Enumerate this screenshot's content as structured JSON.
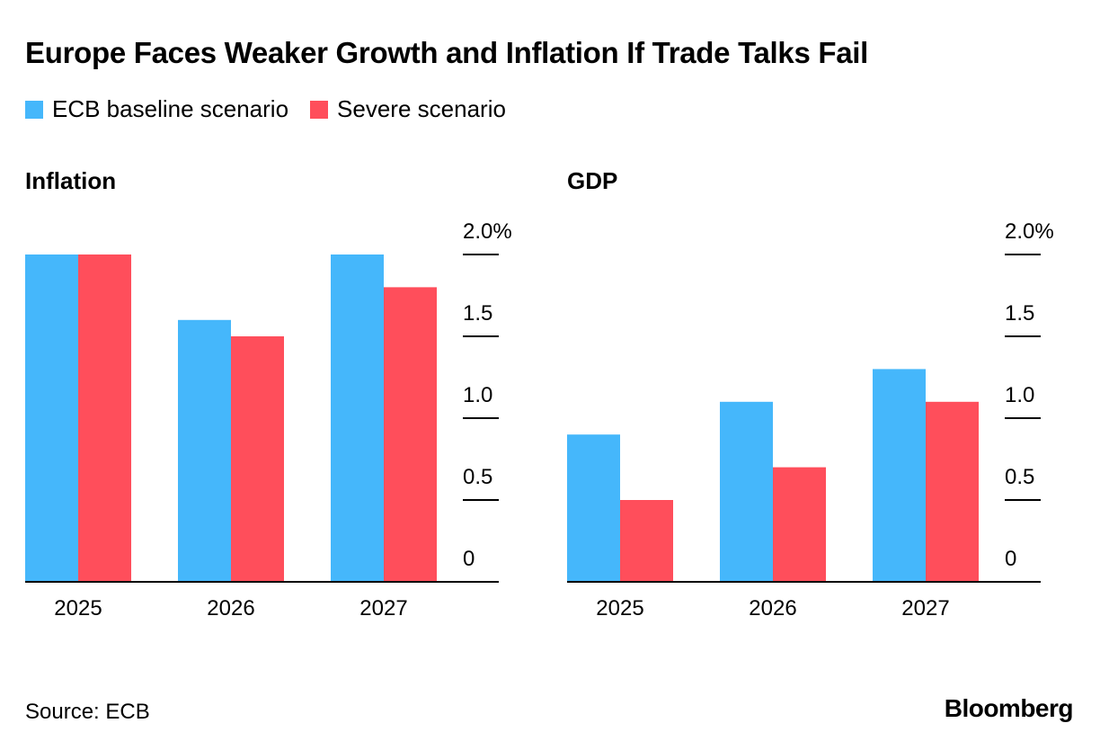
{
  "title": "Europe Faces Weaker Growth and Inflation If Trade Talks Fail",
  "legend": [
    {
      "label": "ECB baseline scenario",
      "color": "#45b7fb"
    },
    {
      "label": "Severe scenario",
      "color": "#ff4e5b"
    }
  ],
  "source": "Source: ECB",
  "logo": "Bloomberg",
  "chart_data": [
    {
      "type": "bar",
      "title": "Inflation",
      "categories": [
        "2025",
        "2026",
        "2027"
      ],
      "series": [
        {
          "name": "ECB baseline scenario",
          "values": [
            2.0,
            1.6,
            2.0
          ]
        },
        {
          "name": "Severe scenario",
          "values": [
            2.0,
            1.5,
            1.8
          ]
        }
      ],
      "ylim": [
        0,
        2.0
      ],
      "yticks": [
        "0",
        "0.5",
        "1.0",
        "1.5",
        "2.0%"
      ],
      "axis_position": "right"
    },
    {
      "type": "bar",
      "title": "GDP",
      "categories": [
        "2025",
        "2026",
        "2027"
      ],
      "series": [
        {
          "name": "ECB baseline scenario",
          "values": [
            0.9,
            1.1,
            1.3
          ]
        },
        {
          "name": "Severe scenario",
          "values": [
            0.5,
            0.7,
            1.1
          ]
        }
      ],
      "ylim": [
        0,
        2.0
      ],
      "yticks": [
        "0",
        "0.5",
        "1.0",
        "1.5",
        "2.0%"
      ],
      "axis_position": "right"
    }
  ]
}
